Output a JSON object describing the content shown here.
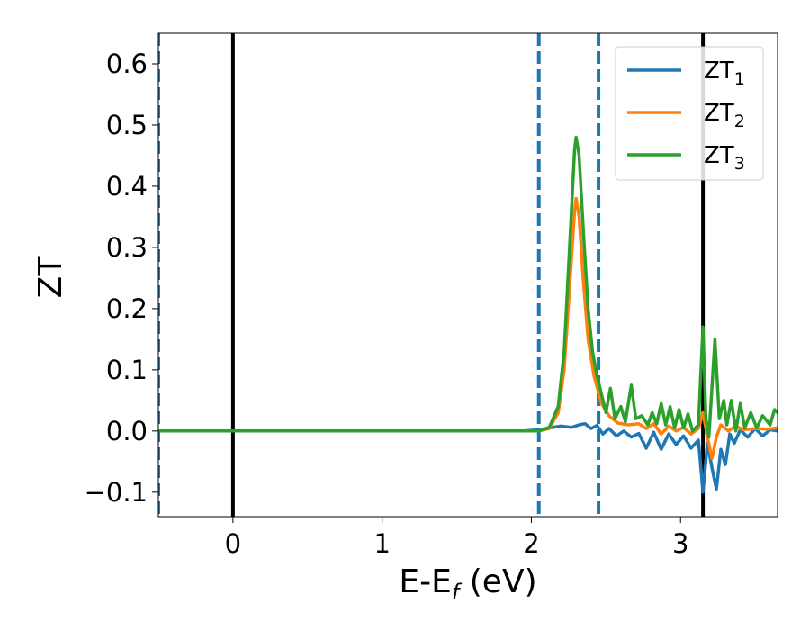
{
  "chart_data": {
    "type": "line",
    "xlabel": "E-E",
    "xlabel_sub": "f",
    "xlabel_unit": " (eV)",
    "ylabel": "ZT",
    "xlim": [
      -0.5,
      3.65
    ],
    "ylim": [
      -0.14,
      0.65
    ],
    "x_ticks": [
      0,
      1,
      2,
      3
    ],
    "x_tick_labels": [
      "0",
      "1",
      "2",
      "3"
    ],
    "y_ticks": [
      -0.1,
      0.0,
      0.1,
      0.2,
      0.3,
      0.4,
      0.5,
      0.6
    ],
    "y_tick_labels": [
      "−0.1",
      "0.0",
      "0.1",
      "0.2",
      "0.3",
      "0.4",
      "0.5",
      "0.6"
    ],
    "legend_position": "top-right",
    "vertical_lines": [
      {
        "x": 0.0,
        "style": "solid",
        "color": "#000000"
      },
      {
        "x": 3.15,
        "style": "solid",
        "color": "#000000"
      },
      {
        "x": -0.5,
        "style": "dashed",
        "color": "#1f77b4"
      },
      {
        "x": 2.05,
        "style": "dashed",
        "color": "#1f77b4"
      },
      {
        "x": 2.45,
        "style": "dashed",
        "color": "#1f77b4"
      }
    ],
    "series": [
      {
        "name": "ZT",
        "name_sub": "1",
        "color": "#1f77b4",
        "points": [
          [
            -0.5,
            0
          ],
          [
            1.95,
            0
          ],
          [
            2.05,
            0.002
          ],
          [
            2.12,
            0.005
          ],
          [
            2.2,
            0.008
          ],
          [
            2.27,
            0.006
          ],
          [
            2.32,
            0.01
          ],
          [
            2.36,
            0.012
          ],
          [
            2.4,
            0.004
          ],
          [
            2.44,
            0.009
          ],
          [
            2.48,
            -0.005
          ],
          [
            2.52,
            0.004
          ],
          [
            2.57,
            -0.008
          ],
          [
            2.62,
            0
          ],
          [
            2.67,
            -0.01
          ],
          [
            2.72,
            -0.004
          ],
          [
            2.77,
            -0.028
          ],
          [
            2.82,
            -0.002
          ],
          [
            2.87,
            -0.03
          ],
          [
            2.92,
            -0.005
          ],
          [
            2.97,
            -0.022
          ],
          [
            3.02,
            -0.008
          ],
          [
            3.07,
            -0.028
          ],
          [
            3.12,
            -0.015
          ],
          [
            3.15,
            -0.1
          ],
          [
            3.18,
            -0.02
          ],
          [
            3.21,
            -0.06
          ],
          [
            3.24,
            -0.095
          ],
          [
            3.27,
            -0.03
          ],
          [
            3.3,
            -0.055
          ],
          [
            3.33,
            -0.005
          ],
          [
            3.36,
            -0.02
          ],
          [
            3.4,
            0.002
          ],
          [
            3.45,
            -0.01
          ],
          [
            3.5,
            0.004
          ],
          [
            3.55,
            -0.008
          ],
          [
            3.6,
            0.002
          ],
          [
            3.65,
            0
          ]
        ]
      },
      {
        "name": "ZT",
        "name_sub": "2",
        "color": "#ff7f0e",
        "points": [
          [
            -0.5,
            0
          ],
          [
            2.05,
            0
          ],
          [
            2.12,
            0.004
          ],
          [
            2.18,
            0.03
          ],
          [
            2.22,
            0.1
          ],
          [
            2.26,
            0.25
          ],
          [
            2.29,
            0.36
          ],
          [
            2.3,
            0.38
          ],
          [
            2.32,
            0.35
          ],
          [
            2.35,
            0.24
          ],
          [
            2.38,
            0.15
          ],
          [
            2.42,
            0.09
          ],
          [
            2.47,
            0.045
          ],
          [
            2.52,
            0.025
          ],
          [
            2.58,
            0.013
          ],
          [
            2.65,
            0.01
          ],
          [
            2.72,
            0.012
          ],
          [
            2.77,
            0.004
          ],
          [
            2.82,
            0.012
          ],
          [
            2.87,
            -0.005
          ],
          [
            2.92,
            0.008
          ],
          [
            2.97,
            0
          ],
          [
            3.02,
            0.006
          ],
          [
            3.07,
            -0.005
          ],
          [
            3.12,
            0.004
          ],
          [
            3.15,
            0.03
          ],
          [
            3.18,
            -0.01
          ],
          [
            3.21,
            -0.045
          ],
          [
            3.24,
            -0.01
          ],
          [
            3.27,
            0.01
          ],
          [
            3.32,
            0
          ],
          [
            3.37,
            0.008
          ],
          [
            3.42,
            0.002
          ],
          [
            3.5,
            0.004
          ],
          [
            3.58,
            0.003
          ],
          [
            3.65,
            0.005
          ]
        ]
      },
      {
        "name": "ZT",
        "name_sub": "3",
        "color": "#2ca02c",
        "points": [
          [
            -0.5,
            0
          ],
          [
            2.05,
            0
          ],
          [
            2.12,
            0.006
          ],
          [
            2.18,
            0.04
          ],
          [
            2.22,
            0.13
          ],
          [
            2.26,
            0.32
          ],
          [
            2.29,
            0.46
          ],
          [
            2.3,
            0.48
          ],
          [
            2.32,
            0.45
          ],
          [
            2.35,
            0.32
          ],
          [
            2.38,
            0.2
          ],
          [
            2.41,
            0.13
          ],
          [
            2.44,
            0.09
          ],
          [
            2.47,
            0.06
          ],
          [
            2.5,
            0.03
          ],
          [
            2.53,
            0.07
          ],
          [
            2.56,
            0.02
          ],
          [
            2.6,
            0.04
          ],
          [
            2.63,
            0.015
          ],
          [
            2.67,
            0.075
          ],
          [
            2.7,
            0.02
          ],
          [
            2.74,
            0.025
          ],
          [
            2.78,
            0.01
          ],
          [
            2.81,
            0.03
          ],
          [
            2.84,
            0.012
          ],
          [
            2.87,
            0.045
          ],
          [
            2.9,
            0.01
          ],
          [
            2.93,
            0.04
          ],
          [
            2.96,
            0.005
          ],
          [
            2.99,
            0.035
          ],
          [
            3.02,
            0.005
          ],
          [
            3.05,
            0.028
          ],
          [
            3.08,
            0
          ],
          [
            3.12,
            0.01
          ],
          [
            3.15,
            0.17
          ],
          [
            3.17,
            0.02
          ],
          [
            3.19,
            -0.01
          ],
          [
            3.23,
            0.15
          ],
          [
            3.26,
            0.02
          ],
          [
            3.29,
            0.05
          ],
          [
            3.31,
            0.01
          ],
          [
            3.34,
            0.05
          ],
          [
            3.37,
            0
          ],
          [
            3.4,
            0.045
          ],
          [
            3.43,
            0.005
          ],
          [
            3.47,
            0.03
          ],
          [
            3.51,
            0.005
          ],
          [
            3.55,
            0.025
          ],
          [
            3.6,
            0.01
          ],
          [
            3.63,
            0.035
          ],
          [
            3.65,
            0.03
          ]
        ]
      }
    ]
  }
}
